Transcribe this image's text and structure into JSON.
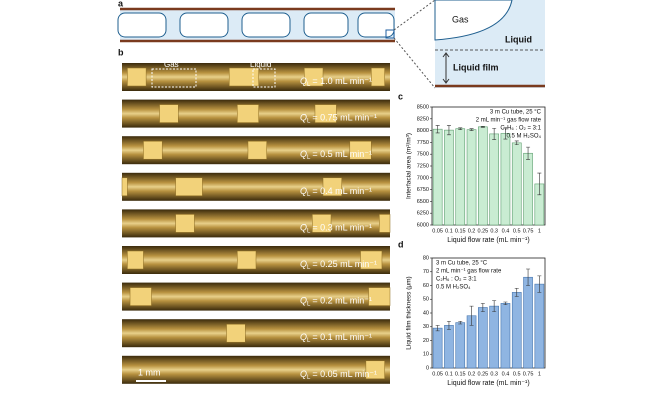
{
  "panel_labels": [
    "a",
    "b",
    "c",
    "d"
  ],
  "schematic": {
    "gas": "Gas",
    "liquid": "Liquid",
    "film": "Liquid film"
  },
  "photos": {
    "gas": "Gas",
    "liquid": "Liquid",
    "symbol": "Q",
    "subscript": "L",
    "flows": [
      "= 1.0 mL min⁻¹",
      "= 0.75 mL min⁻¹",
      "= 0.5 mL min⁻¹",
      "= 0.4 mL min⁻¹",
      "= 0.3 mL min⁻¹",
      "= 0.25 mL min⁻¹",
      "= 0.2 mL min⁻¹",
      "= 0.1 mL min⁻¹",
      "= 0.05 mL min⁻¹"
    ],
    "scale_bar": "1 mm"
  },
  "chart_data": [
    {
      "type": "bar",
      "annotations": [
        "3 m Cu tube, 25 °C",
        "2 mL min⁻¹ gas flow rate",
        "C₂H₆ : O₂ = 3:1",
        "0.5 M H₂SO₄"
      ],
      "xlabel": "Liquid flow rate (mL min⁻¹)",
      "ylabel": "Interfacial area (m²/m³)",
      "categories": [
        "0.05",
        "0.1",
        "0.15",
        "0.2",
        "0.25",
        "0.3",
        "0.4",
        "0.5",
        "0.75",
        "1"
      ],
      "values": [
        8030,
        8010,
        8040,
        8020,
        8080,
        7930,
        7940,
        7740,
        7520,
        6870
      ],
      "errors": [
        80,
        100,
        20,
        20,
        10,
        120,
        120,
        40,
        130,
        230
      ],
      "color": "#c9ecd2",
      "edge_color": "#5f9e70",
      "ylim": [
        6000,
        8500
      ],
      "yticks": [
        6000,
        6250,
        6500,
        6750,
        7000,
        7250,
        7500,
        7750,
        8000,
        8250,
        8500
      ]
    },
    {
      "type": "bar",
      "annotations": [
        "3 m Cu tube, 25 °C",
        "2 mL min⁻¹ gas flow rate",
        "C₂H₆ : O₂ = 3:1",
        "0.5 M H₂SO₄"
      ],
      "xlabel": "Liquid flow rate (mL min⁻¹)",
      "ylabel": "Liquid film thickness (μm)",
      "categories": [
        "0.05",
        "0.1",
        "0.15",
        "0.2",
        "0.25",
        "0.3",
        "0.4",
        "0.5",
        "0.75",
        "1"
      ],
      "values": [
        29,
        31,
        33,
        38,
        44,
        45,
        47,
        55,
        66,
        61
      ],
      "errors": [
        2,
        3,
        1,
        7,
        3,
        4,
        1,
        3,
        6,
        6
      ],
      "color": "#8fb5e2",
      "edge_color": "#4876ae",
      "ylim": [
        0,
        80
      ],
      "yticks": [
        0,
        10,
        20,
        30,
        40,
        50,
        60,
        70,
        80
      ]
    }
  ]
}
